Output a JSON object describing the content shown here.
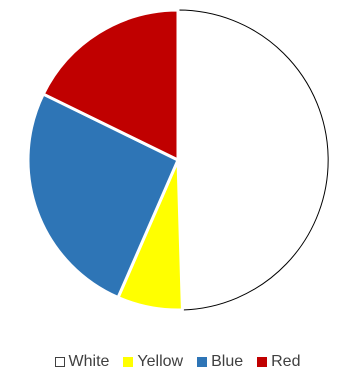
{
  "chart_data": {
    "type": "pie",
    "title": "",
    "start_angle_deg": 0,
    "direction": "clockwise",
    "series": [
      {
        "categories": [
          "White",
          "Yellow",
          "Blue",
          "Red"
        ],
        "values": [
          53,
          7.5,
          27.5,
          19
        ],
        "colors": [
          "#ffffff",
          "#ffff00",
          "#2e75b6",
          "#c00000"
        ],
        "outline": "#000000"
      }
    ],
    "legend": {
      "position": "bottom",
      "entries": [
        "White",
        "Yellow",
        "Blue",
        "Red"
      ]
    }
  }
}
